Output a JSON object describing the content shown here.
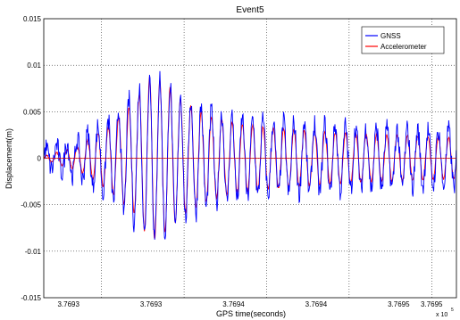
{
  "chart_data": {
    "type": "line",
    "title": "Event5",
    "xlabel": "GPS time(seconds)",
    "ylabel": "Displacement(m)",
    "x_exponent_label": "x 10",
    "x_exponent_power": "5",
    "xlim": [
      376926.5,
      376951.5
    ],
    "ylim": [
      -0.015,
      0.015
    ],
    "grid": true,
    "legend_position": "top-right",
    "x_ticks": [
      376930,
      376935,
      376940,
      376945,
      376950
    ],
    "x_tick_labels": [
      "3.7693",
      "3.7693",
      "3.7694",
      "3.7694",
      "3.7695",
      "3.7695"
    ],
    "x_tick_values": [
      376928,
      376933,
      376938,
      376943,
      376948,
      376950
    ],
    "y_ticks": [
      -0.015,
      -0.01,
      -0.005,
      0,
      0.005,
      0.01,
      0.015
    ],
    "y_tick_labels": [
      "-0.015",
      "-0.01",
      "-0.005",
      "0",
      "0.005",
      "0.01",
      "0.015"
    ],
    "series": [
      {
        "name": "GNSS",
        "color": "#0000ff",
        "freq_hz": 1.6,
        "envelope": [
          [
            376926.5,
            0.001
          ],
          [
            376928.5,
            0.002
          ],
          [
            376930.5,
            0.0042
          ],
          [
            376932.0,
            0.007
          ],
          [
            376933.0,
            0.009
          ],
          [
            376934.0,
            0.0082
          ],
          [
            376935.0,
            0.0065
          ],
          [
            376936.5,
            0.0052
          ],
          [
            376938.0,
            0.0045
          ],
          [
            376940.0,
            0.004
          ],
          [
            376942.0,
            0.0038
          ],
          [
            376944.0,
            0.0036
          ],
          [
            376946.0,
            0.0033
          ],
          [
            376948.0,
            0.0031
          ],
          [
            376950.0,
            0.003
          ],
          [
            376951.5,
            0.003
          ]
        ],
        "noise": 0.0012
      },
      {
        "name": "Accelerometer",
        "color": "#ff0000",
        "freq_hz": 1.6,
        "envelope": [
          [
            376926.5,
            0.0002
          ],
          [
            376928.5,
            0.0012
          ],
          [
            376930.5,
            0.0035
          ],
          [
            376932.0,
            0.006
          ],
          [
            376933.0,
            0.009
          ],
          [
            376934.0,
            0.0078
          ],
          [
            376935.0,
            0.006
          ],
          [
            376936.5,
            0.0045
          ],
          [
            376938.0,
            0.0038
          ],
          [
            376940.0,
            0.0033
          ],
          [
            376942.0,
            0.003
          ],
          [
            376944.0,
            0.0028
          ],
          [
            376946.0,
            0.0026
          ],
          [
            376948.0,
            0.0024
          ],
          [
            376950.0,
            0.0023
          ],
          [
            376951.5,
            0.0022
          ]
        ],
        "noise": 0.0002
      }
    ]
  }
}
